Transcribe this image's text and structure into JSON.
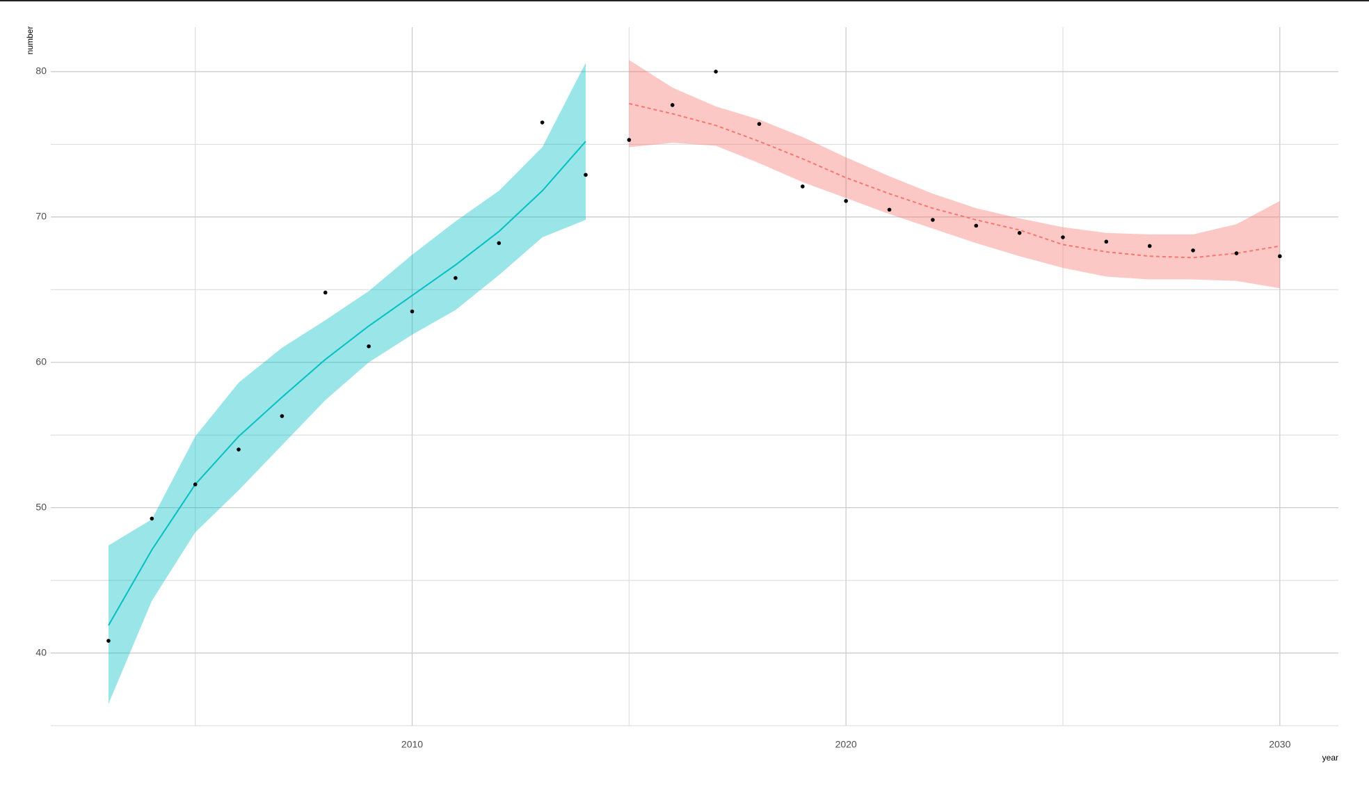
{
  "chart_data": {
    "type": "scatter",
    "x_label": "year",
    "y_label": "number",
    "x": [
      2003,
      2004,
      2005,
      2006,
      2007,
      2008,
      2009,
      2010,
      2011,
      2012,
      2013,
      2014,
      2015,
      2016,
      2017,
      2018,
      2019,
      2020,
      2021,
      2022,
      2023,
      2024,
      2025,
      2026,
      2027,
      2028,
      2029,
      2030
    ],
    "values": [
      40.84,
      49.25,
      51.6,
      54.0,
      56.3,
      64.8,
      61.1,
      63.5,
      65.8,
      68.2,
      76.5,
      72.9,
      75.3,
      77.7,
      80.0,
      76.4,
      72.1,
      71.1,
      70.5,
      69.8,
      69.4,
      68.9,
      68.6,
      68.3,
      68.0,
      67.7,
      67.5,
      67.3
    ],
    "color": "#000000",
    "fits": [
      {
        "color": "#00BFC4",
        "dashed": false,
        "x": [
          2003,
          2004,
          2005,
          2006,
          2007,
          2008,
          2009,
          2010,
          2011,
          2012,
          2013,
          2014
        ],
        "values": [
          41.9,
          47.1,
          51.6,
          54.9,
          57.6,
          60.2,
          62.5,
          64.6,
          66.7,
          69.0,
          71.8,
          75.2
        ],
        "upper": [
          47.4,
          49.2,
          54.9,
          58.6,
          61.0,
          62.9,
          64.9,
          67.4,
          69.7,
          71.8,
          74.8,
          80.6
        ],
        "lower": [
          36.5,
          43.6,
          48.3,
          51.2,
          54.3,
          57.4,
          60.0,
          61.9,
          63.6,
          66.0,
          68.6,
          69.8
        ]
      },
      {
        "color": "#F8766D",
        "dashed": true,
        "x": [
          2015,
          2016,
          2017,
          2018,
          2019,
          2020,
          2021,
          2022,
          2023,
          2024,
          2025,
          2026,
          2027,
          2028,
          2029,
          2030
        ],
        "values": [
          77.8,
          77.1,
          76.3,
          75.2,
          74.0,
          72.7,
          71.6,
          70.6,
          69.8,
          69.1,
          68.1,
          67.6,
          67.3,
          67.2,
          67.5,
          68.0
        ],
        "upper": [
          80.8,
          78.9,
          77.6,
          76.7,
          75.5,
          74.1,
          72.8,
          71.6,
          70.6,
          69.9,
          69.3,
          68.9,
          68.8,
          68.8,
          69.5,
          71.1
        ],
        "lower": [
          74.8,
          75.1,
          74.9,
          73.7,
          72.4,
          71.3,
          70.2,
          69.2,
          68.2,
          67.3,
          66.5,
          65.9,
          65.7,
          65.7,
          65.6,
          65.1
        ]
      }
    ],
    "xlim": [
      2001.67,
      2031.35
    ],
    "ylim": [
      35.0,
      83.06
    ],
    "xticks": [
      2010,
      2020,
      2030
    ],
    "yticks": [
      40,
      50,
      60,
      70,
      80
    ],
    "x_minor_ticks": [
      2005,
      2015,
      2025
    ],
    "y_minor_ticks": [
      35,
      45,
      55,
      65,
      75
    ],
    "grid": true
  }
}
